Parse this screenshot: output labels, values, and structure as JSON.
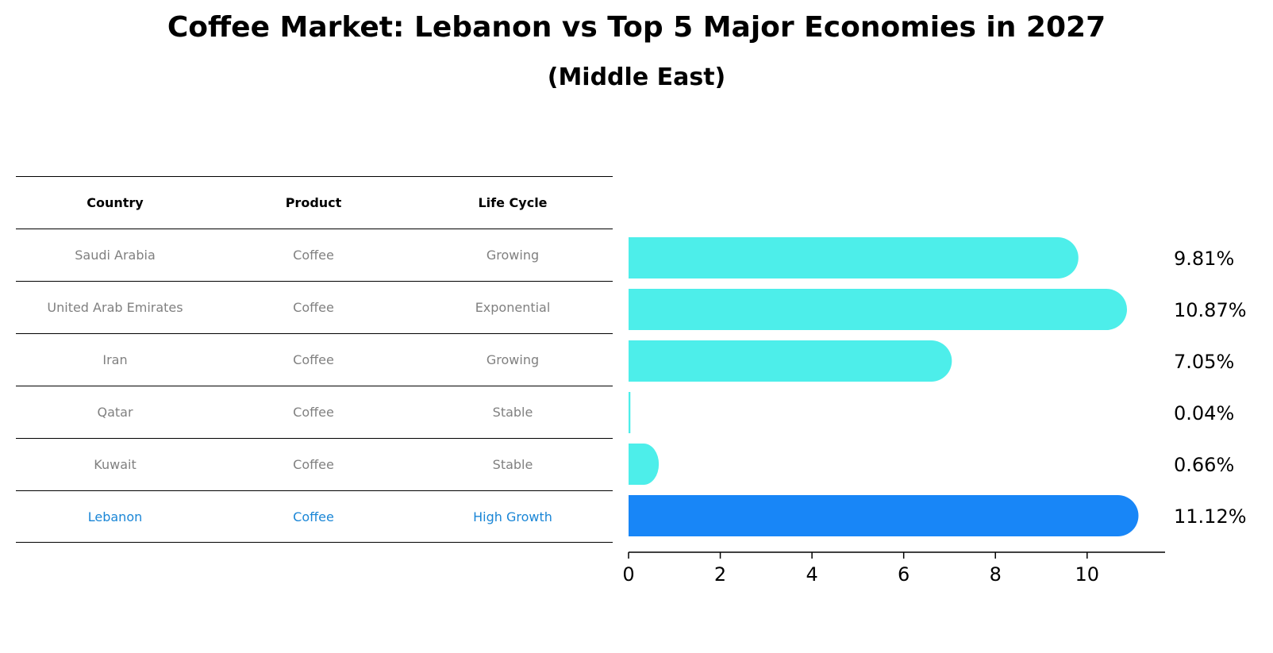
{
  "header": {
    "title": "Coffee Market: Lebanon vs Top 5 Major Economies in 2027",
    "subtitle": "(Middle East)"
  },
  "table": {
    "columns": [
      "Country",
      "Product",
      "Life Cycle"
    ],
    "rows": [
      [
        "Saudi Arabia",
        "Coffee",
        "Growing"
      ],
      [
        "United Arab Emirates",
        "Coffee",
        "Exponential"
      ],
      [
        "Iran",
        "Coffee",
        "Growing"
      ],
      [
        "Qatar",
        "Coffee",
        "Stable"
      ],
      [
        "Kuwait",
        "Coffee",
        "Stable"
      ],
      [
        "Lebanon",
        "Coffee",
        "High Growth"
      ]
    ]
  },
  "colors": {
    "bar": "#4deeea",
    "highlight_bar": "#1886f7",
    "highlight_text": "#1a86d6",
    "muted_text": "#808080"
  },
  "chart_data": {
    "type": "bar",
    "orientation": "horizontal",
    "categories": [
      "Saudi Arabia",
      "United Arab Emirates",
      "Iran",
      "Qatar",
      "Kuwait",
      "Lebanon"
    ],
    "values": [
      9.81,
      10.87,
      7.05,
      0.04,
      0.66,
      11.12
    ],
    "value_labels": [
      "9.81%",
      "10.87%",
      "7.05%",
      "0.04%",
      "0.66%",
      "11.12%"
    ],
    "highlight": "Lebanon",
    "xlim": [
      0,
      11.7
    ],
    "xticks": [
      0,
      2,
      4,
      6,
      8,
      10
    ],
    "grid": false,
    "legend": "none"
  }
}
